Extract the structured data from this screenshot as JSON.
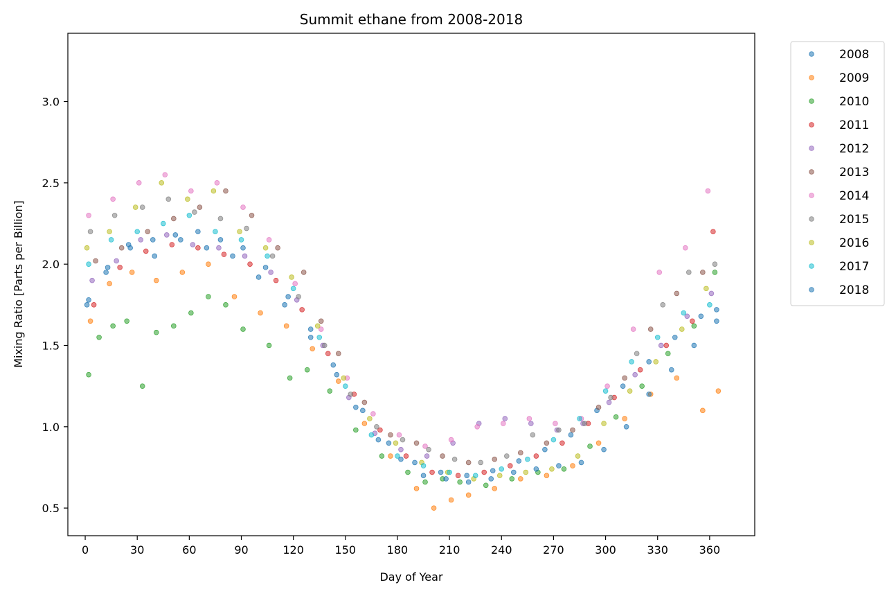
{
  "chart_data": {
    "type": "scatter",
    "title": "Summit ethane from 2008-2018",
    "xlabel": "Day of Year",
    "ylabel": "Mixing Ratio [Parts per Billion]",
    "xlim": [
      -10,
      386
    ],
    "ylim": [
      0.33,
      3.42
    ],
    "xticks": [
      0,
      30,
      60,
      90,
      120,
      150,
      180,
      210,
      240,
      270,
      300,
      330,
      360
    ],
    "yticks": [
      0.5,
      1.0,
      1.5,
      2.0,
      2.5,
      3.0
    ],
    "ytick_labels": [
      "0.5",
      "1.0",
      "1.5",
      "2.0",
      "2.5",
      "3.0"
    ],
    "legend_position": "outside-top-right",
    "marker_alpha": 0.55,
    "series": [
      {
        "name": "2008",
        "color": "#1f77b4",
        "x": [
          2,
          12,
          25,
          40,
          55,
          70,
          85,
          100,
          115,
          130,
          145,
          160,
          175,
          190,
          205,
          220,
          235,
          250,
          265,
          280,
          295,
          310,
          325,
          340,
          355,
          364
        ],
        "y": [
          1.78,
          1.95,
          2.12,
          2.05,
          2.15,
          2.1,
          2.05,
          1.92,
          1.75,
          1.55,
          1.32,
          1.1,
          0.9,
          0.78,
          0.72,
          0.7,
          0.73,
          0.79,
          0.86,
          0.95,
          1.1,
          1.25,
          1.4,
          1.55,
          1.68,
          1.72
        ]
      },
      {
        "name": "2009",
        "color": "#ff7f0e",
        "x": [
          3,
          14,
          27,
          41,
          56,
          71,
          86,
          101,
          116,
          131,
          146,
          161,
          176,
          191,
          201,
          211,
          221,
          236,
          251,
          266,
          281,
          296,
          311,
          326,
          341,
          356,
          365
        ],
        "y": [
          1.65,
          1.88,
          1.95,
          1.9,
          1.95,
          2.0,
          1.8,
          1.7,
          1.62,
          1.48,
          1.28,
          1.02,
          0.82,
          0.62,
          0.5,
          0.55,
          0.58,
          0.62,
          0.68,
          0.7,
          0.76,
          0.9,
          1.05,
          1.2,
          1.3,
          1.1,
          1.22
        ]
      },
      {
        "name": "2010",
        "color": "#2ca02c",
        "x": [
          2,
          8,
          16,
          24,
          33,
          41,
          51,
          61,
          71,
          81,
          91,
          106,
          118,
          128,
          141,
          156,
          171,
          186,
          196,
          206,
          216,
          231,
          246,
          261,
          276,
          291,
          306,
          321,
          336,
          351,
          363
        ],
        "y": [
          1.32,
          1.55,
          1.62,
          1.65,
          1.25,
          1.58,
          1.62,
          1.7,
          1.8,
          1.75,
          1.6,
          1.5,
          1.3,
          1.35,
          1.22,
          0.98,
          0.82,
          0.72,
          0.66,
          0.68,
          0.66,
          0.64,
          0.68,
          0.72,
          0.74,
          0.88,
          1.06,
          1.25,
          1.45,
          1.62,
          1.95
        ]
      },
      {
        "name": "2011",
        "color": "#d62728",
        "x": [
          5,
          20,
          35,
          50,
          65,
          80,
          95,
          110,
          125,
          140,
          155,
          170,
          185,
          200,
          215,
          230,
          245,
          260,
          275,
          290,
          305,
          320,
          335,
          350,
          362
        ],
        "y": [
          1.75,
          1.98,
          2.08,
          2.12,
          2.1,
          2.06,
          2.0,
          1.9,
          1.72,
          1.45,
          1.2,
          0.98,
          0.82,
          0.72,
          0.7,
          0.72,
          0.76,
          0.82,
          0.9,
          1.02,
          1.18,
          1.35,
          1.5,
          1.65,
          2.2
        ]
      },
      {
        "name": "2012",
        "color": "#9467bd",
        "x": [
          4,
          18,
          32,
          47,
          62,
          77,
          92,
          107,
          122,
          137,
          152,
          167,
          182,
          197,
          212,
          227,
          242,
          257,
          272,
          287,
          302,
          317,
          332,
          347,
          361
        ],
        "y": [
          1.9,
          2.02,
          2.15,
          2.18,
          2.12,
          2.1,
          2.05,
          1.95,
          1.78,
          1.5,
          1.18,
          0.96,
          0.86,
          0.82,
          0.9,
          1.02,
          1.05,
          1.02,
          0.98,
          1.02,
          1.15,
          1.32,
          1.5,
          1.68,
          1.82
        ]
      },
      {
        "name": "2013",
        "color": "#8c564b",
        "x": [
          6,
          21,
          36,
          51,
          66,
          81,
          96,
          111,
          126,
          136,
          146,
          161,
          176,
          191,
          206,
          221,
          236,
          251,
          266,
          281,
          296,
          311,
          326,
          341,
          356
        ],
        "y": [
          2.02,
          2.1,
          2.2,
          2.28,
          2.35,
          2.45,
          2.3,
          2.1,
          1.95,
          1.65,
          1.45,
          1.15,
          0.95,
          0.9,
          0.82,
          0.78,
          0.8,
          0.84,
          0.9,
          0.98,
          1.12,
          1.3,
          1.6,
          1.82,
          1.95
        ]
      },
      {
        "name": "2014",
        "color": "#e377c2",
        "x": [
          2,
          16,
          31,
          46,
          61,
          76,
          91,
          106,
          121,
          136,
          151,
          166,
          181,
          196,
          211,
          226,
          241,
          256,
          271,
          286,
          301,
          316,
          331,
          346,
          359
        ],
        "y": [
          2.3,
          2.4,
          2.5,
          2.55,
          2.45,
          2.5,
          2.35,
          2.15,
          1.88,
          1.6,
          1.3,
          1.08,
          0.95,
          0.88,
          0.92,
          1.0,
          1.02,
          1.05,
          1.02,
          1.05,
          1.25,
          1.6,
          1.95,
          2.1,
          2.45
        ]
      },
      {
        "name": "2015",
        "color": "#7f7f7f",
        "x": [
          3,
          17,
          33,
          48,
          63,
          78,
          93,
          108,
          123,
          138,
          153,
          168,
          183,
          198,
          213,
          228,
          243,
          258,
          273,
          288,
          303,
          318,
          333,
          348,
          363
        ],
        "y": [
          2.2,
          2.3,
          2.35,
          2.4,
          2.32,
          2.28,
          2.22,
          2.05,
          1.8,
          1.5,
          1.2,
          1.0,
          0.92,
          0.86,
          0.8,
          0.78,
          0.82,
          0.95,
          0.98,
          1.02,
          1.18,
          1.45,
          1.75,
          1.95,
          2.0
        ]
      },
      {
        "name": "2016",
        "color": "#bcbd22",
        "x": [
          1,
          14,
          29,
          44,
          59,
          74,
          89,
          104,
          119,
          134,
          149,
          164,
          179,
          194,
          209,
          224,
          239,
          254,
          269,
          284,
          299,
          314,
          329,
          344,
          358
        ],
        "y": [
          2.1,
          2.2,
          2.35,
          2.5,
          2.4,
          2.45,
          2.2,
          2.1,
          1.92,
          1.62,
          1.3,
          1.05,
          0.9,
          0.78,
          0.72,
          0.68,
          0.7,
          0.72,
          0.74,
          0.82,
          1.02,
          1.22,
          1.4,
          1.6,
          1.85
        ]
      },
      {
        "name": "2017",
        "color": "#17becf",
        "x": [
          2,
          15,
          30,
          45,
          60,
          75,
          90,
          105,
          120,
          135,
          150,
          165,
          180,
          195,
          210,
          225,
          240,
          255,
          270,
          285,
          300,
          315,
          330,
          345,
          360
        ],
        "y": [
          2.0,
          2.15,
          2.2,
          2.25,
          2.3,
          2.2,
          2.15,
          2.05,
          1.85,
          1.55,
          1.25,
          0.95,
          0.82,
          0.76,
          0.72,
          0.7,
          0.74,
          0.8,
          0.92,
          1.05,
          1.22,
          1.4,
          1.55,
          1.7,
          1.75
        ]
      },
      {
        "name": "2018",
        "color": "#1f77b4",
        "x": [
          1,
          13,
          26,
          39,
          52,
          65,
          78,
          91,
          104,
          117,
          130,
          143,
          156,
          169,
          182,
          195,
          208,
          221,
          234,
          247,
          260,
          273,
          286,
          299,
          312,
          325,
          338,
          351,
          364
        ],
        "y": [
          1.75,
          1.98,
          2.1,
          2.15,
          2.18,
          2.2,
          2.15,
          2.1,
          1.98,
          1.8,
          1.6,
          1.38,
          1.12,
          0.92,
          0.8,
          0.7,
          0.68,
          0.66,
          0.68,
          0.72,
          0.74,
          0.76,
          0.78,
          0.86,
          1.0,
          1.2,
          1.35,
          1.5,
          1.65
        ]
      }
    ]
  }
}
